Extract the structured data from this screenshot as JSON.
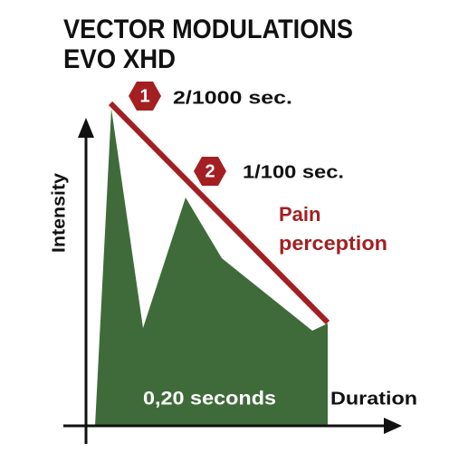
{
  "title": [
    "VECTOR MODULATIONS",
    "EVO XHD"
  ],
  "markers": [
    {
      "number": "1",
      "label": "2/1000 sec."
    },
    {
      "number": "2",
      "label": "1/100 sec."
    }
  ],
  "pain_label": [
    "Pain",
    "perception"
  ],
  "y_axis_label": "Intensity",
  "x_axis_label": "Duration",
  "area_label": "0,20 seconds"
}
